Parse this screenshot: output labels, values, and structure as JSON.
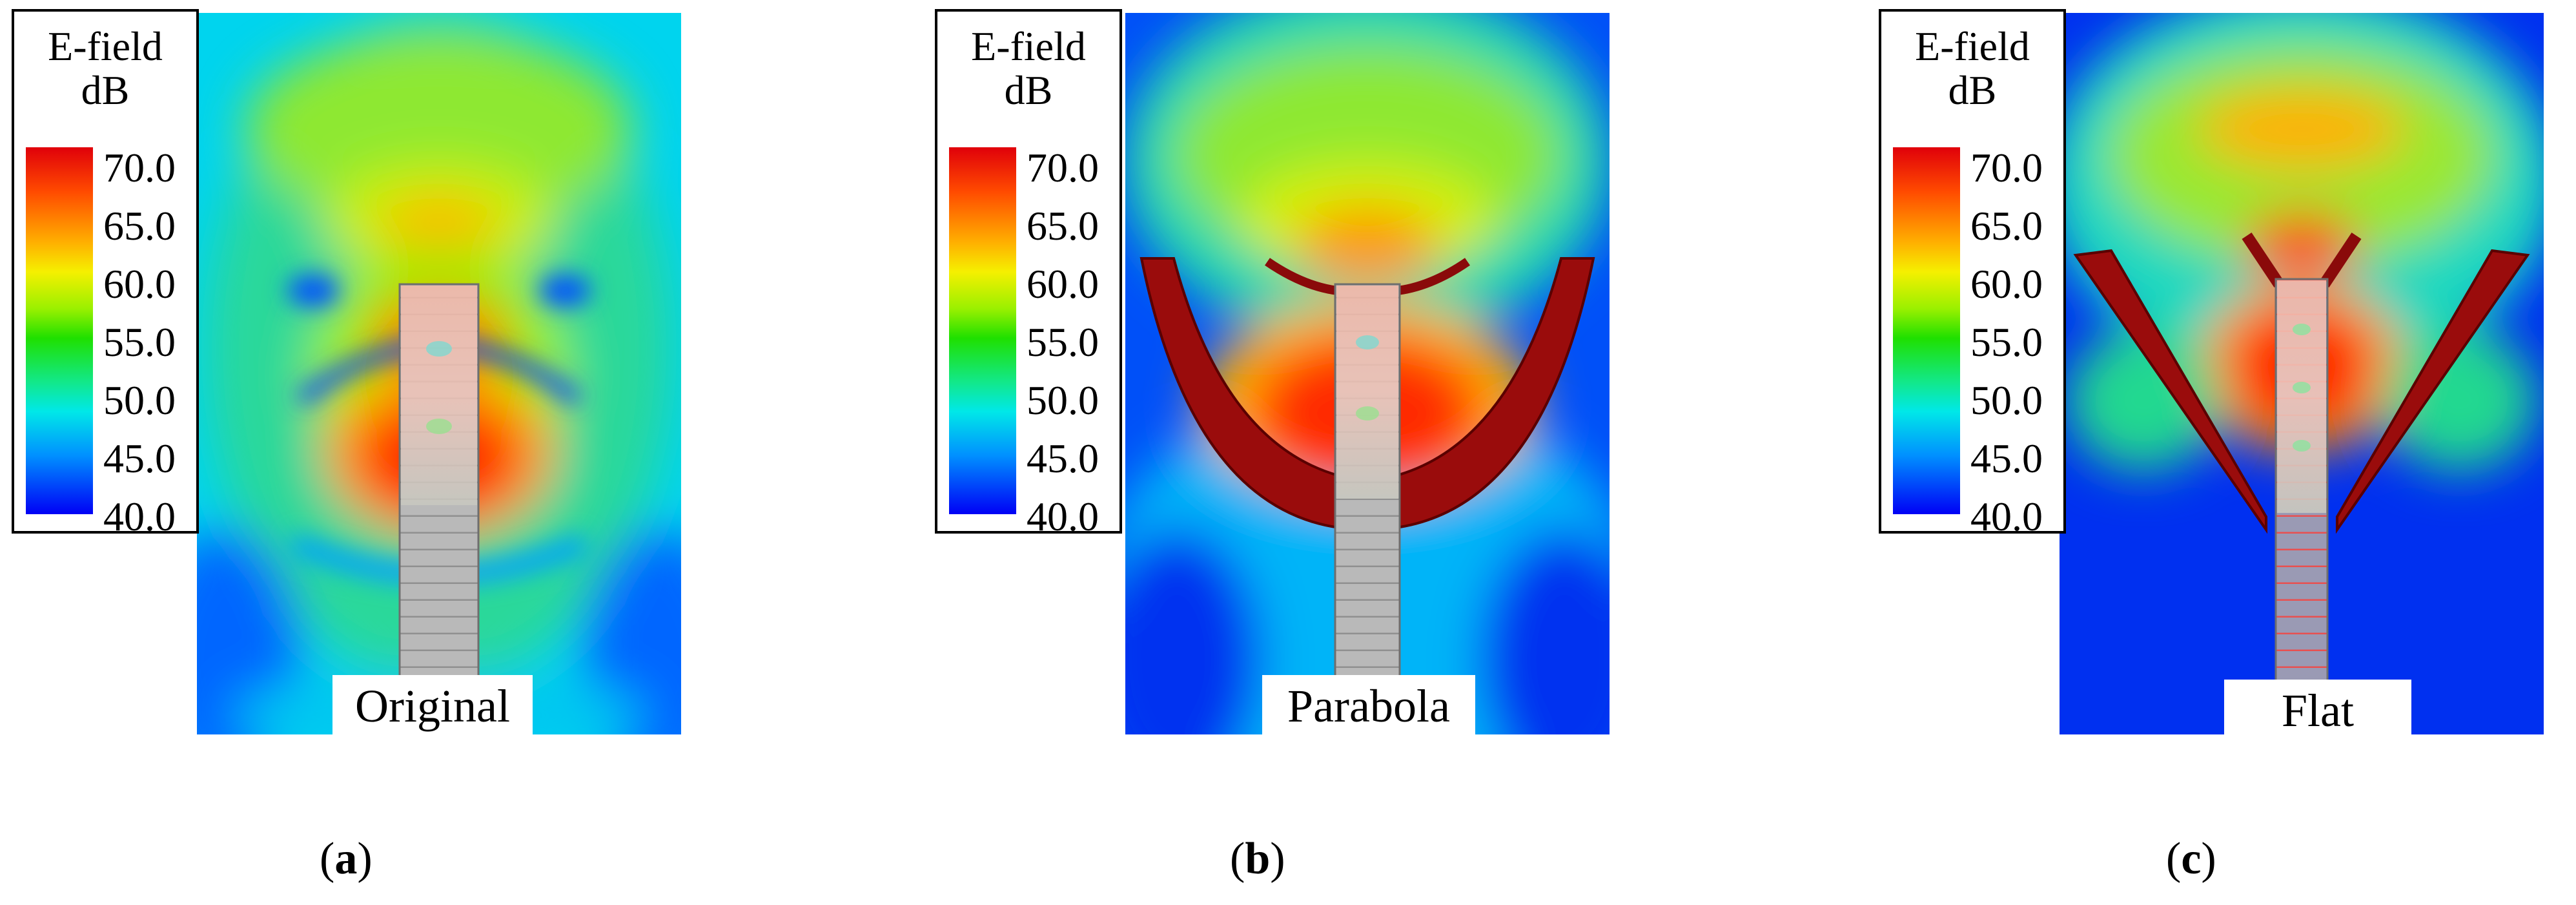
{
  "colorbar": {
    "title_line1": "E-field",
    "title_line2": "dB",
    "ticks": [
      "70.0",
      "65.0",
      "60.0",
      "55.0",
      "50.0",
      "45.0",
      "40.0"
    ],
    "range_db": [
      40,
      70
    ],
    "colors": [
      "#e0000a",
      "#ffb000",
      "#f5f000",
      "#1fe000",
      "#00e8e8",
      "#0090ff",
      "#0000f5"
    ]
  },
  "panels": [
    {
      "id": "a",
      "caption": "Original",
      "sublabel_open": "(",
      "sublabel_letter": "a",
      "sublabel_close": ")"
    },
    {
      "id": "b",
      "caption": "Parabola",
      "sublabel_open": "(",
      "sublabel_letter": "b",
      "sublabel_close": ")"
    },
    {
      "id": "c",
      "caption": "Flat",
      "sublabel_open": "(",
      "sublabel_letter": "c",
      "sublabel_close": ")"
    }
  ]
}
